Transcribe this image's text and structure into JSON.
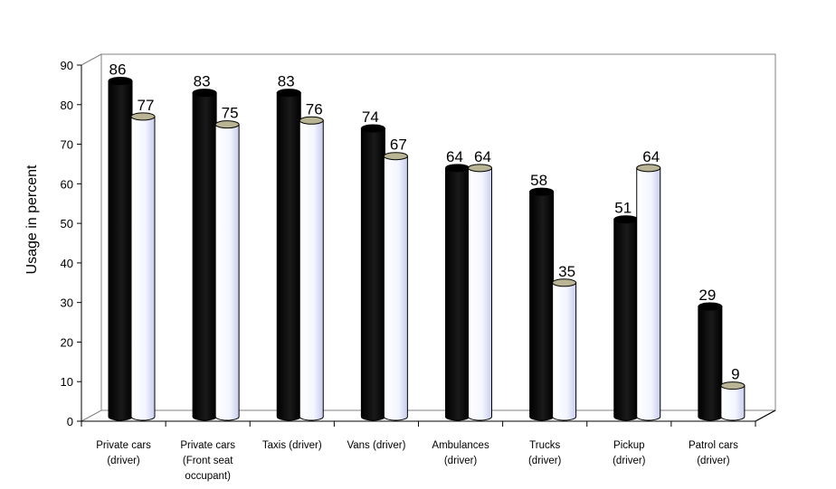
{
  "chart_data": {
    "type": "bar",
    "title": "",
    "xlabel": "",
    "ylabel": "Usage in percent",
    "ylim": [
      0,
      90
    ],
    "yticks": [
      0,
      10,
      20,
      30,
      40,
      50,
      60,
      70,
      80,
      90
    ],
    "grid": false,
    "legend": "none",
    "categories": [
      [
        "Private cars",
        "(driver)"
      ],
      [
        "Private cars",
        "(Front seat",
        "occupant)"
      ],
      [
        "Taxis (driver)"
      ],
      [
        "Vans (driver)"
      ],
      [
        "Ambulances",
        "(driver)"
      ],
      [
        "Trucks",
        "(driver)"
      ],
      [
        "Pickup",
        "(driver)"
      ],
      [
        "Patrol cars",
        "(driver)"
      ]
    ],
    "series": [
      {
        "values": [
          86,
          83,
          83,
          74,
          64,
          58,
          51,
          29
        ],
        "color": "#000000"
      },
      {
        "values": [
          77,
          75,
          76,
          67,
          64,
          35,
          64,
          9
        ],
        "color": "#ffffff"
      }
    ]
  }
}
